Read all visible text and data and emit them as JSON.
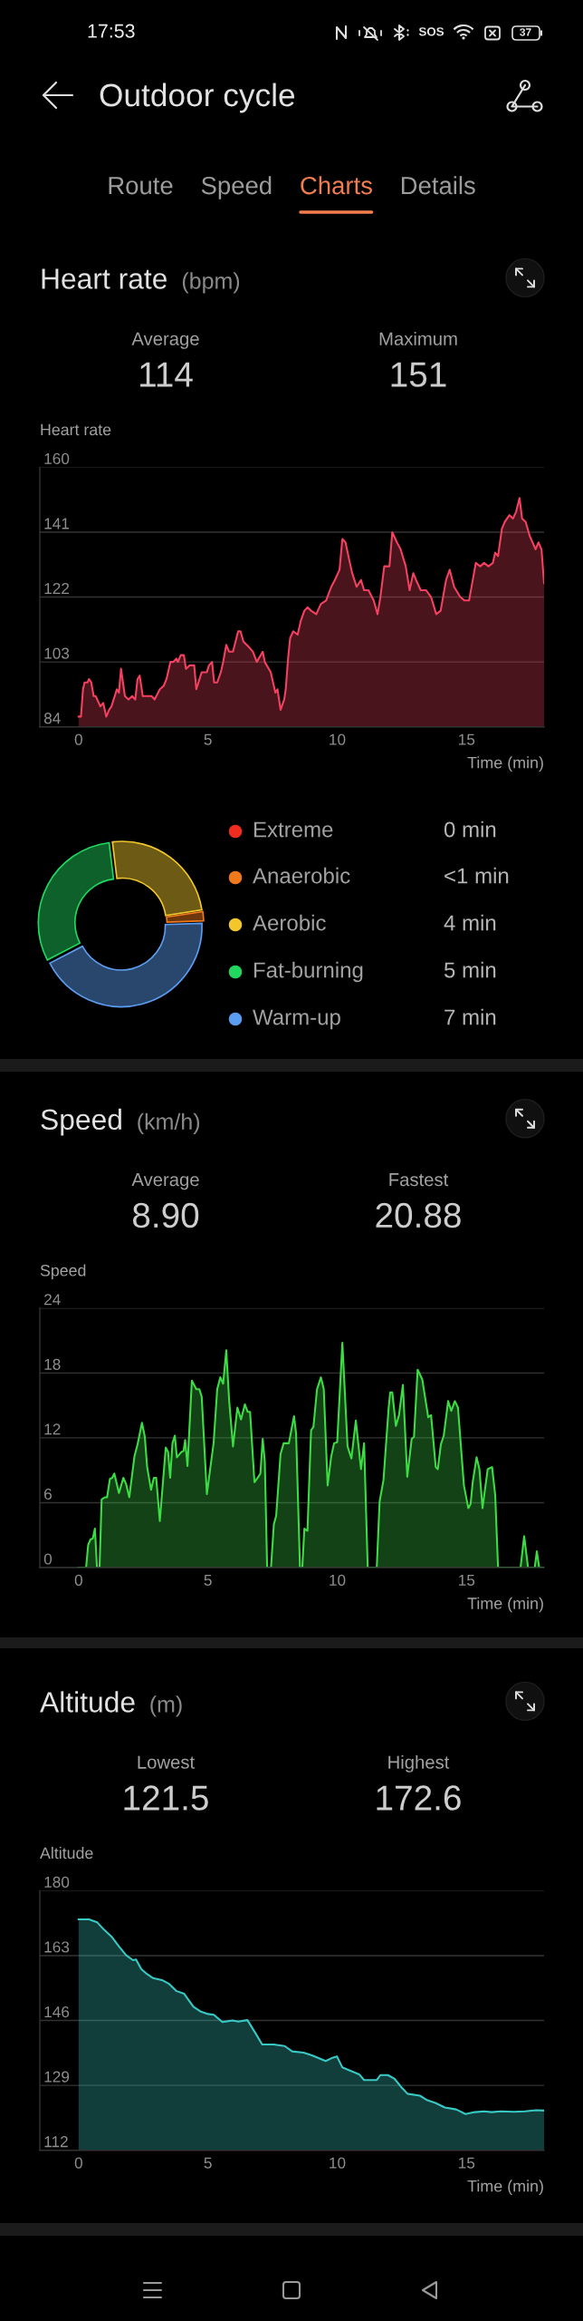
{
  "chart_data": [
    {
      "type": "other",
      "title": "Outdoor cycle",
      "annotations": [
        "17:53",
        "SOS",
        "37",
        "Route",
        "Speed",
        "Charts",
        "Details"
      ]
    },
    {
      "type": "area",
      "title": "Heart rate",
      "subtitle": "(bpm)",
      "annotations": [
        "Average",
        "114",
        "Maximum",
        "151"
      ],
      "ylabel": "Heart rate",
      "xlabel": "Time (min)",
      "x": [
        0,
        0.09,
        0.17,
        0.23,
        0.35,
        0.4,
        0.49,
        0.58,
        0.66,
        0.84,
        0.95,
        1.07,
        1.18,
        1.27,
        1.48,
        1.56,
        1.64,
        1.79,
        1.93,
        2.07,
        2.19,
        2.28,
        2.36,
        2.48,
        2.59,
        2.82,
        2.94,
        3.14,
        3.29,
        3.4,
        3.55,
        3.66,
        3.78,
        3.84,
        3.95,
        4.07,
        4.15,
        4.29,
        4.47,
        4.55,
        4.76,
        4.96,
        5.04,
        5.16,
        5.24,
        5.36,
        5.5,
        5.59,
        5.71,
        5.82,
        5.97,
        6.17,
        6.26,
        6.37,
        6.63,
        6.74,
        6.89,
        7.12,
        7.2,
        7.43,
        7.61,
        7.69,
        7.81,
        7.95,
        8.01,
        8.1,
        8.18,
        8.3,
        8.47,
        8.59,
        8.73,
        8.85,
        8.99,
        9.19,
        9.37,
        9.57,
        9.77,
        9.91,
        10.09,
        10.2,
        10.32,
        10.49,
        10.58,
        10.75,
        10.92,
        11.04,
        11.21,
        11.41,
        11.56,
        11.67,
        11.82,
        12.02,
        12.13,
        12.31,
        12.45,
        12.65,
        12.8,
        12.94,
        13.05,
        13.23,
        13.44,
        13.63,
        13.83,
        14.0,
        14.21,
        14.35,
        14.52,
        14.76,
        14.93,
        15.1,
        15.36,
        15.53,
        15.68,
        15.85,
        16.02,
        16.11,
        16.22,
        16.37,
        16.48,
        16.66,
        16.8,
        16.92,
        17.05,
        17.15,
        17.29,
        17.44,
        17.67,
        17.78,
        17.9,
        18
      ],
      "series": [
        {
          "color": "#f5415f",
          "values": [
            87,
            87,
            95,
            97,
            97,
            98,
            97,
            93,
            93,
            90,
            91,
            87,
            89,
            90,
            95,
            94,
            101,
            93,
            92,
            93,
            92,
            98,
            99,
            93,
            93,
            93,
            92,
            95,
            96,
            98,
            103,
            103,
            104,
            103,
            105,
            105,
            101,
            102,
            102,
            95,
            100,
            100,
            102,
            103,
            97,
            97,
            100,
            103,
            108,
            106,
            106,
            112,
            112,
            109,
            107,
            106,
            103,
            106,
            103,
            100,
            94,
            95,
            89,
            92,
            95,
            104,
            110,
            112,
            111,
            115,
            118,
            119,
            118,
            117,
            120,
            121,
            125,
            127,
            130,
            139,
            138,
            132,
            129,
            125,
            127,
            124,
            124,
            121,
            117,
            122,
            131,
            131,
            141,
            138,
            136,
            131,
            124,
            129,
            127,
            124,
            124,
            122,
            117,
            118,
            127,
            130,
            125,
            122,
            121,
            121,
            132,
            131,
            132,
            131,
            132,
            135,
            134,
            142,
            144,
            146,
            145,
            147,
            151,
            145,
            144,
            140,
            136,
            138,
            136,
            126
          ]
        }
      ],
      "xlim": [
        -1.5,
        18
      ],
      "xticks": [
        0,
        5,
        10,
        15
      ],
      "ylim": [
        84,
        160
      ],
      "yticks": [
        84,
        103,
        122,
        141,
        160
      ],
      "grid": "y"
    },
    {
      "type": "donut",
      "categories": [
        "Extreme",
        "Anaerobic",
        "Aerobic",
        "Fat-burning",
        "Warm-up"
      ],
      "values": [
        0,
        0.3,
        4,
        5,
        7
      ],
      "colors": [
        "#f02d1e",
        "#f0791c",
        "#f2c72c",
        "#21d760",
        "#5b9df0"
      ],
      "value_labels": [
        "0 min",
        "<1 min",
        "4 min",
        "5 min",
        "7 min"
      ],
      "legend": "right"
    },
    {
      "type": "area",
      "title": "Speed",
      "subtitle": "(km/h)",
      "annotations": [
        "Average",
        "8.90",
        "Fastest",
        "20.88"
      ],
      "ylabel": "Speed",
      "xlabel": "Time (min)",
      "x": [
        0,
        0.29,
        0.37,
        0.46,
        0.55,
        0.63,
        0.71,
        0.81,
        0.89,
        1.01,
        1.1,
        1.21,
        1.3,
        1.38,
        1.56,
        1.73,
        1.84,
        1.96,
        2.16,
        2.28,
        2.45,
        2.56,
        2.65,
        2.8,
        2.91,
        3.0,
        3.14,
        3.37,
        3.46,
        3.54,
        3.63,
        3.72,
        3.8,
        3.98,
        4.06,
        4.12,
        4.21,
        4.38,
        4.55,
        4.67,
        4.76,
        4.96,
        5.22,
        5.36,
        5.48,
        5.59,
        5.71,
        5.82,
        5.97,
        6.14,
        6.28,
        6.43,
        6.54,
        6.63,
        6.8,
        6.95,
        7.03,
        7.12,
        7.2,
        7.29,
        7.44,
        7.55,
        7.64,
        7.81,
        7.93,
        8.13,
        8.33,
        8.41,
        8.56,
        8.65,
        8.73,
        8.85,
        8.99,
        9.08,
        9.22,
        9.37,
        9.48,
        9.63,
        9.77,
        9.88,
        10.0,
        10.2,
        10.4,
        10.55,
        10.72,
        10.92,
        11.04,
        11.18,
        11.53,
        11.64,
        11.79,
        11.99,
        12.05,
        12.13,
        12.27,
        12.39,
        12.54,
        12.71,
        12.88,
        12.97,
        13.11,
        13.29,
        13.52,
        13.63,
        13.81,
        13.89,
        14.01,
        14.12,
        14.29,
        14.41,
        14.55,
        14.67,
        14.9,
        15.07,
        15.16,
        15.24,
        15.39,
        15.5,
        15.62,
        15.82,
        15.99,
        16.11,
        16.22,
        17.09,
        17.23,
        17.38,
        17.64,
        17.72,
        17.81,
        18
      ],
      "series": [
        {
          "color": "#3ddc44",
          "values": [
            0,
            0,
            2.1,
            2.6,
            2.7,
            3.6,
            0,
            0,
            6.3,
            6.5,
            6.5,
            8.2,
            8.3,
            8.7,
            6.9,
            8.3,
            7.7,
            6.5,
            10.3,
            11.4,
            13.4,
            12.1,
            9.3,
            7.2,
            8.3,
            8.3,
            4.3,
            11.1,
            10.7,
            8.3,
            11.5,
            12.2,
            10.2,
            10.7,
            10.8,
            11.8,
            9.4,
            17.3,
            16.5,
            16.5,
            15.8,
            6.8,
            11.5,
            16.5,
            17.6,
            17.0,
            20.1,
            15.5,
            11.2,
            14.8,
            13.7,
            15.1,
            14.4,
            14.4,
            7.9,
            8.4,
            8.7,
            11.9,
            9.8,
            0,
            0,
            4.0,
            4.8,
            10.5,
            11.5,
            11.5,
            14.0,
            12.4,
            0,
            0,
            3.6,
            3.4,
            12.7,
            13.0,
            16.5,
            17.6,
            16.5,
            7.6,
            10.3,
            11.5,
            11.6,
            20.8,
            11.2,
            10.1,
            13.6,
            9.1,
            11.5,
            0,
            0,
            6.1,
            8.1,
            14.8,
            16.2,
            16.2,
            13.1,
            14.1,
            16.9,
            8.4,
            11.9,
            12.1,
            18.3,
            17.4,
            13.9,
            14.1,
            9.3,
            9.1,
            11.4,
            12.2,
            15.4,
            14.5,
            15.4,
            14.8,
            7.6,
            5.5,
            5.9,
            7.9,
            10.2,
            9.1,
            5.5,
            9.1,
            9.3,
            6.7,
            0,
            0,
            2.9,
            0,
            0,
            1.5,
            0,
            0
          ]
        }
      ],
      "xlim": [
        -1.5,
        18
      ],
      "xticks": [
        0,
        5,
        10,
        15
      ],
      "ylim": [
        0,
        24
      ],
      "yticks": [
        0,
        6,
        12,
        18,
        24
      ],
      "grid": "y"
    },
    {
      "type": "area",
      "title": "Altitude",
      "subtitle": "(m)",
      "annotations": [
        "Lowest",
        "121.5",
        "Highest",
        "172.6"
      ],
      "ylabel": "Altitude",
      "xlabel": "Time (min)",
      "x": [
        0,
        0.4,
        0.72,
        0.98,
        1.27,
        1.56,
        1.84,
        2.1,
        2.22,
        2.42,
        2.64,
        2.88,
        3.22,
        3.5,
        3.79,
        4.08,
        4.44,
        4.73,
        5.01,
        5.23,
        5.56,
        5.95,
        6.17,
        6.53,
        6.82,
        7.1,
        7.54,
        7.97,
        8.26,
        8.7,
        9.05,
        9.55,
        9.84,
        9.99,
        10.2,
        10.49,
        10.85,
        11.04,
        11.53,
        11.67,
        11.96,
        12.22,
        12.51,
        12.72,
        13.2,
        13.49,
        13.8,
        14.16,
        14.6,
        14.96,
        15.32,
        15.68,
        15.97,
        16.33,
        16.83,
        17.26,
        17.69,
        18
      ],
      "series": [
        {
          "color": "#38c9c4",
          "values": [
            172.5,
            172.5,
            171.7,
            169.8,
            168.0,
            165.4,
            163.1,
            161.8,
            162.0,
            159.5,
            158.2,
            157.1,
            156.6,
            155.6,
            153.7,
            153.0,
            149.6,
            148.3,
            147.7,
            147.5,
            145.6,
            146.0,
            145.7,
            146.1,
            142.9,
            139.7,
            139.7,
            139.3,
            137.9,
            137.6,
            136.8,
            135.4,
            136.3,
            136.6,
            133.7,
            132.9,
            131.9,
            130.4,
            130.4,
            131.7,
            131.7,
            130.7,
            128.3,
            126.8,
            126.3,
            125.1,
            124.4,
            123.2,
            122.7,
            121.5,
            122.0,
            122.2,
            122.0,
            122.2,
            122.1,
            122.2,
            122.5,
            122.4
          ]
        }
      ],
      "xlim": [
        -1.5,
        18
      ],
      "xticks": [
        0,
        5,
        10,
        15
      ],
      "ylim": [
        112,
        180
      ],
      "yticks": [
        112,
        129,
        146,
        163,
        180
      ],
      "grid": "y"
    }
  ]
}
